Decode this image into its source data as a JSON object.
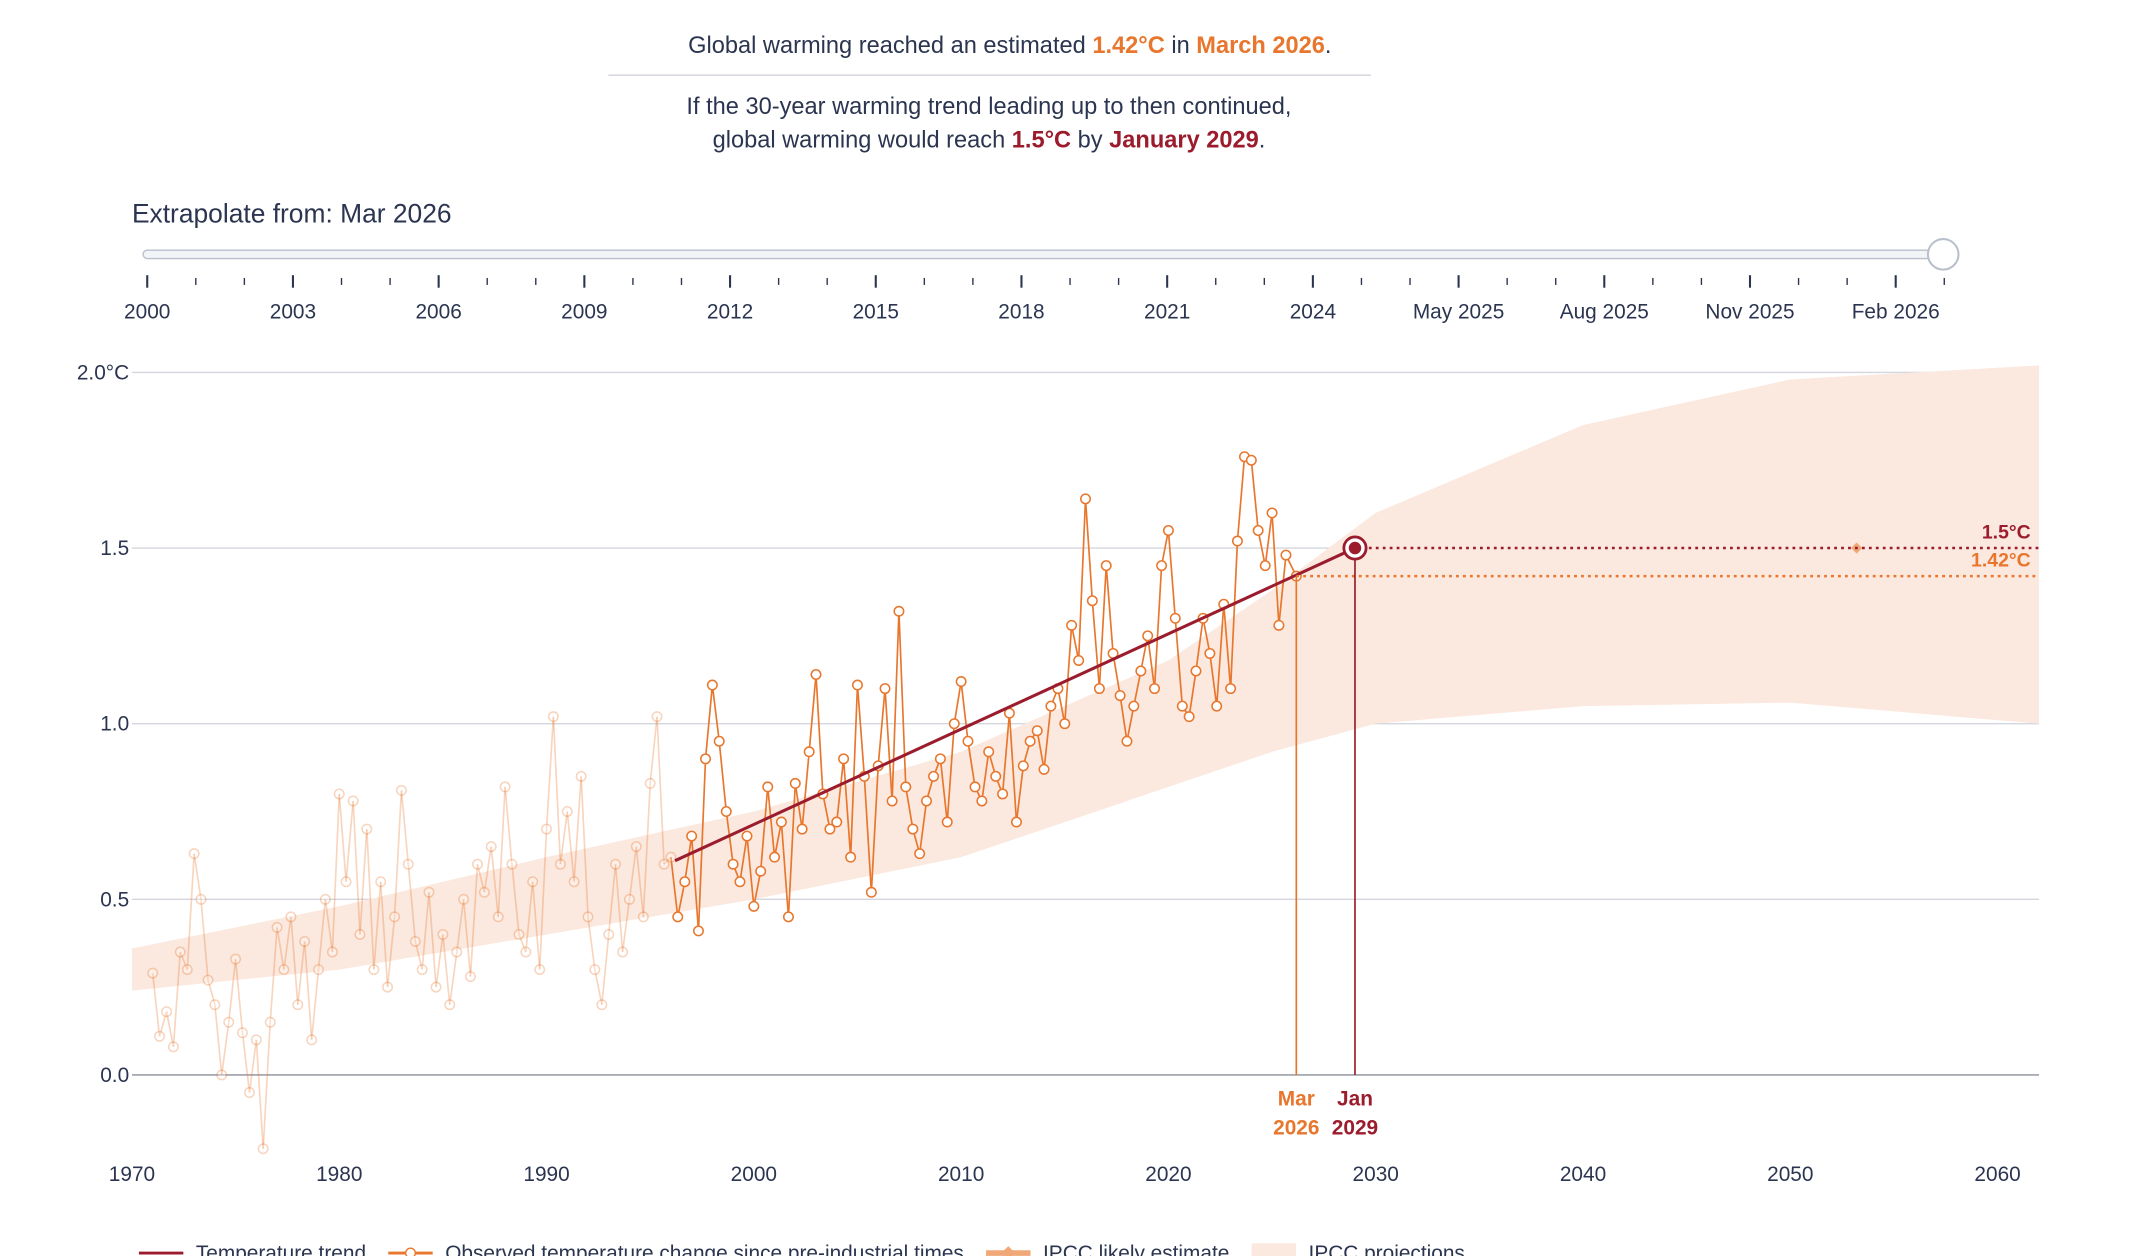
{
  "headline": {
    "line1": [
      "Global warming reached an estimated ",
      "1.42°C",
      " in ",
      "March 2026",
      "."
    ],
    "line2": "If the 30-year warming trend leading up to then continued,",
    "line3": [
      "global warming would reach ",
      "1.5°C",
      " by ",
      "January 2029",
      "."
    ]
  },
  "slider": {
    "label": "Extrapolate from: Mar 2026",
    "ticks": [
      "2000",
      "2003",
      "2006",
      "2009",
      "2012",
      "2015",
      "2018",
      "2021",
      "2024",
      "May 2025",
      "Aug 2025",
      "Nov 2025",
      "Feb 2026"
    ]
  },
  "chart_data": {
    "type": "line",
    "xlim": [
      1970,
      2062
    ],
    "xticks": [
      1970,
      1980,
      1990,
      2000,
      2010,
      2020,
      2030,
      2040,
      2050,
      2060
    ],
    "ylim": [
      -0.25,
      2.0
    ],
    "yticks": [
      {
        "value": 0,
        "label": "0.0"
      },
      0.5,
      {
        "value": 1,
        "label": "1.0"
      },
      1.5,
      {
        "value": 2,
        "label": "2.0°C"
      }
    ],
    "grid": true,
    "legend": "bottom",
    "series": [
      {
        "name": "IPCC projections",
        "kind": "band",
        "color": "#fbe8de",
        "x": [
          1970,
          1980,
          1990,
          2000,
          2010,
          2020,
          2025,
          2030,
          2040,
          2050,
          2062
        ],
        "lower": [
          0.24,
          0.3,
          0.4,
          0.5,
          0.62,
          0.82,
          0.92,
          1.0,
          1.05,
          1.06,
          1.0
        ],
        "upper": [
          0.36,
          0.48,
          0.62,
          0.75,
          0.92,
          1.18,
          1.38,
          1.6,
          1.85,
          1.98,
          2.02
        ]
      },
      {
        "name": "Temperature trend",
        "kind": "line",
        "color": "#9b1c2c",
        "x": [
          1996.2,
          2029.0
        ],
        "values": [
          0.61,
          1.5
        ]
      },
      {
        "name": "Observed temperature change since pre-industrial times",
        "kind": "markers-line",
        "color": "#e8762c",
        "x": [
          1971,
          1971.33,
          1971.67,
          1972,
          1972.33,
          1972.67,
          1973,
          1973.33,
          1973.67,
          1974,
          1974.33,
          1974.67,
          1975,
          1975.33,
          1975.67,
          1976,
          1976.33,
          1976.67,
          1977,
          1977.33,
          1977.67,
          1978,
          1978.33,
          1978.67,
          1979,
          1979.33,
          1979.67,
          1980,
          1980.33,
          1980.67,
          1981,
          1981.33,
          1981.67,
          1982,
          1982.33,
          1982.67,
          1983,
          1983.33,
          1983.67,
          1984,
          1984.33,
          1984.67,
          1985,
          1985.33,
          1985.67,
          1986,
          1986.33,
          1986.67,
          1987,
          1987.33,
          1987.67,
          1988,
          1988.33,
          1988.67,
          1989,
          1989.33,
          1989.67,
          1990,
          1990.33,
          1990.67,
          1991,
          1991.33,
          1991.67,
          1992,
          1992.33,
          1992.67,
          1993,
          1993.33,
          1993.67,
          1994,
          1994.33,
          1994.67,
          1995,
          1995.33,
          1995.67,
          1996,
          1996.33,
          1996.67,
          1997,
          1997.33,
          1997.67,
          1998,
          1998.33,
          1998.67,
          1999,
          1999.33,
          1999.67,
          2000,
          2000.33,
          2000.67,
          2001,
          2001.33,
          2001.67,
          2002,
          2002.33,
          2002.67,
          2003,
          2003.33,
          2003.67,
          2004,
          2004.33,
          2004.67,
          2005,
          2005.33,
          2005.67,
          2006,
          2006.33,
          2006.67,
          2007,
          2007.33,
          2007.67,
          2008,
          2008.33,
          2008.67,
          2009,
          2009.33,
          2009.67,
          2010,
          2010.33,
          2010.67,
          2011,
          2011.33,
          2011.67,
          2012,
          2012.33,
          2012.67,
          2013,
          2013.33,
          2013.67,
          2014,
          2014.33,
          2014.67,
          2015,
          2015.33,
          2015.67,
          2016,
          2016.33,
          2016.67,
          2017,
          2017.33,
          2017.67,
          2018,
          2018.33,
          2018.67,
          2019,
          2019.33,
          2019.67,
          2020,
          2020.33,
          2020.67,
          2021,
          2021.33,
          2021.67,
          2022,
          2022.33,
          2022.67,
          2023,
          2023.33,
          2023.67,
          2024,
          2024.33,
          2024.67,
          2025,
          2025.33,
          2025.67,
          2026.17
        ],
        "values": [
          0.29,
          0.11,
          0.18,
          0.08,
          0.35,
          0.3,
          0.63,
          0.5,
          0.27,
          0.2,
          0.0,
          0.15,
          0.33,
          0.12,
          -0.05,
          0.1,
          -0.21,
          0.15,
          0.42,
          0.3,
          0.45,
          0.2,
          0.38,
          0.1,
          0.3,
          0.5,
          0.35,
          0.8,
          0.55,
          0.78,
          0.4,
          0.7,
          0.3,
          0.55,
          0.25,
          0.45,
          0.81,
          0.6,
          0.38,
          0.3,
          0.52,
          0.25,
          0.4,
          0.2,
          0.35,
          0.5,
          0.28,
          0.6,
          0.52,
          0.65,
          0.45,
          0.82,
          0.6,
          0.4,
          0.35,
          0.55,
          0.3,
          0.7,
          1.02,
          0.6,
          0.75,
          0.55,
          0.85,
          0.45,
          0.3,
          0.2,
          0.4,
          0.6,
          0.35,
          0.5,
          0.65,
          0.45,
          0.83,
          1.02,
          0.6,
          0.62,
          0.45,
          0.55,
          0.68,
          0.41,
          0.9,
          1.11,
          0.95,
          0.75,
          0.6,
          0.55,
          0.68,
          0.48,
          0.58,
          0.82,
          0.62,
          0.72,
          0.45,
          0.83,
          0.7,
          0.92,
          1.14,
          0.8,
          0.7,
          0.72,
          0.9,
          0.62,
          1.11,
          0.85,
          0.52,
          0.88,
          1.1,
          0.78,
          1.32,
          0.82,
          0.7,
          0.63,
          0.78,
          0.85,
          0.9,
          0.72,
          1.0,
          1.12,
          0.95,
          0.82,
          0.78,
          0.92,
          0.85,
          0.8,
          1.03,
          0.72,
          0.88,
          0.95,
          0.98,
          0.87,
          1.05,
          1.1,
          1.0,
          1.28,
          1.18,
          1.64,
          1.35,
          1.1,
          1.45,
          1.2,
          1.08,
          0.95,
          1.05,
          1.15,
          1.25,
          1.1,
          1.45,
          1.55,
          1.3,
          1.05,
          1.02,
          1.15,
          1.3,
          1.2,
          1.05,
          1.34,
          1.1,
          1.52,
          1.76,
          1.75,
          1.55,
          1.45,
          1.6,
          1.28,
          1.48,
          1.42
        ]
      },
      {
        "name": "IPCC likely estimate",
        "kind": "diamond",
        "color": "#f0a878",
        "x": [
          2053.2
        ],
        "values": [
          1.5
        ]
      }
    ],
    "annotations": [
      {
        "text": "1.42°C",
        "x": 2026.17,
        "y": 1.42,
        "x_label": "Mar 2026",
        "color": "#e8762c"
      },
      {
        "text": "1.5°C",
        "x": 2029.0,
        "y": 1.5,
        "x_label": "Jan 2029",
        "color": "#9b1c2c"
      }
    ]
  }
}
